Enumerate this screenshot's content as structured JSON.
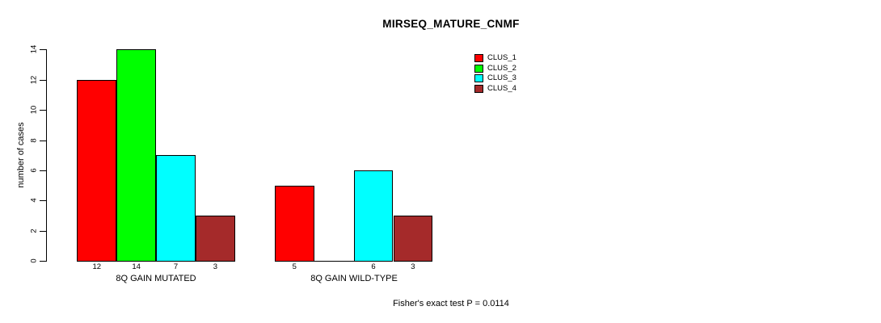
{
  "title": "MIRSEQ_MATURE_CNMF",
  "y_axis": {
    "label": "number of cases"
  },
  "legend": {
    "items": [
      {
        "label": "CLUS_1",
        "color": "#FF0000"
      },
      {
        "label": "CLUS_2",
        "color": "#00FF00"
      },
      {
        "label": "CLUS_3",
        "color": "#00FFFF"
      },
      {
        "label": "CLUS_4",
        "color": "#A52A2A"
      }
    ]
  },
  "footer": "Fisher's exact test P = 0.0114",
  "chart_data": {
    "type": "bar",
    "title": "MIRSEQ_MATURE_CNMF",
    "xlabel": "",
    "ylabel": "number of cases",
    "ylim": [
      0,
      14
    ],
    "yticks": [
      0,
      2,
      4,
      6,
      8,
      10,
      12,
      14
    ],
    "grid": false,
    "legend_position": "top-right",
    "categories": [
      "8Q GAIN MUTATED",
      "8Q GAIN WILD-TYPE"
    ],
    "series": [
      {
        "name": "CLUS_1",
        "color": "#FF0000",
        "values": [
          12,
          5
        ]
      },
      {
        "name": "CLUS_2",
        "color": "#00FF00",
        "values": [
          14,
          0
        ]
      },
      {
        "name": "CLUS_3",
        "color": "#00FFFF",
        "values": [
          7,
          6
        ]
      },
      {
        "name": "CLUS_4",
        "color": "#A52A2A",
        "values": [
          3,
          3
        ]
      }
    ],
    "bar_value_labels": [
      [
        "12",
        "14",
        "7",
        "3"
      ],
      [
        "5",
        "",
        "6",
        "3"
      ]
    ],
    "annotation": "Fisher's exact test P = 0.0114"
  }
}
